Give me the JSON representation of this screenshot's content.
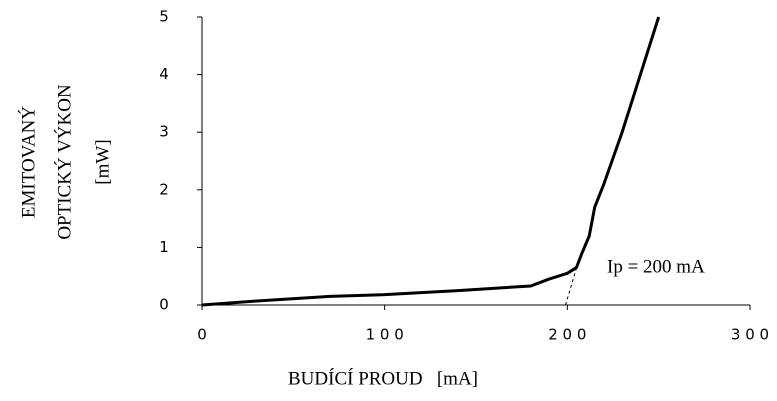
{
  "chart_data": {
    "type": "line",
    "x_label": "BUDÍCÍ PROUD   [mA]",
    "y_label": [
      "EMITOVANÝ",
      "OPTICKÝ VÝKON",
      "[mW]"
    ],
    "annotation": "Ip = 200 mA",
    "x": [
      0,
      30,
      70,
      100,
      140,
      180,
      190,
      200,
      205,
      208,
      212,
      215,
      220,
      230,
      240,
      250
    ],
    "series": [
      {
        "color": "#000000",
        "values": [
          0,
          0.07,
          0.15,
          0.18,
          0.25,
          0.33,
          0.45,
          0.55,
          0.65,
          0.9,
          1.2,
          1.7,
          2.1,
          3.0,
          4.0,
          5.0
        ]
      }
    ],
    "extrapolation": {
      "x": [
        199,
        206
      ],
      "values": [
        0,
        0.75
      ],
      "color": "#000000"
    },
    "xlim": [
      0,
      300
    ],
    "ylim": [
      0,
      5
    ],
    "xticks": [
      {
        "value": 0,
        "label": "0"
      },
      {
        "value": 100,
        "label": "1 0 0"
      },
      {
        "value": 200,
        "label": "2 0 0"
      },
      {
        "value": 300,
        "label": "3 0 0"
      }
    ],
    "yticks": [
      0,
      1,
      2,
      3,
      4,
      5
    ],
    "grid": false
  }
}
